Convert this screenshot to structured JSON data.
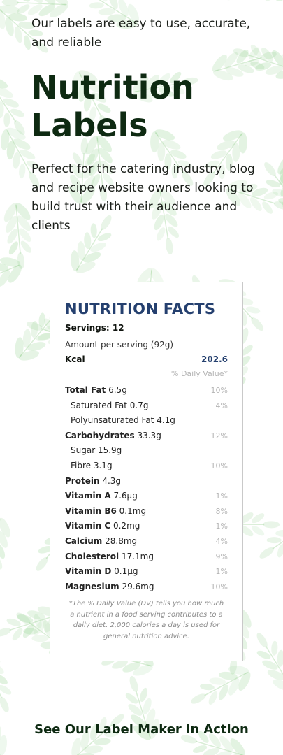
{
  "hero": {
    "tagline": "Our labels are easy to use, accurate, and reliable",
    "title": "Nutrition Labels",
    "intro": "Perfect for the catering industry, blog and recipe website owners looking to build trust with their audience and clients"
  },
  "label": {
    "title": "NUTRITION FACTS",
    "servings": "Servings: 12",
    "amount": "Amount per serving (92g)",
    "kcal_label": "Kcal",
    "kcal_value": "202.6",
    "dv_header": "% Daily Value*",
    "rows": [
      {
        "name": "Total Fat",
        "amount": " 6.5g",
        "pct": "10%",
        "bold": true,
        "sub": false
      },
      {
        "name": "Saturated Fat",
        "amount": " 0.7g",
        "pct": "4%",
        "bold": false,
        "sub": true
      },
      {
        "name": "Polyunsaturated Fat",
        "amount": " 4.1g",
        "pct": "",
        "bold": false,
        "sub": true
      },
      {
        "name": "Carbohydrates",
        "amount": " 33.3g",
        "pct": "12%",
        "bold": true,
        "sub": false
      },
      {
        "name": "Sugar",
        "amount": " 15.9g",
        "pct": "",
        "bold": false,
        "sub": true
      },
      {
        "name": "Fibre",
        "amount": " 3.1g",
        "pct": "10%",
        "bold": false,
        "sub": true
      },
      {
        "name": "Protein",
        "amount": " 4.3g",
        "pct": "",
        "bold": true,
        "sub": false
      },
      {
        "name": "Vitamin A",
        "amount": " 7.6µg",
        "pct": "1%",
        "bold": true,
        "sub": false
      },
      {
        "name": "Vitamin B6",
        "amount": " 0.1mg",
        "pct": "8%",
        "bold": true,
        "sub": false
      },
      {
        "name": "Vitamin C",
        "amount": " 0.2mg",
        "pct": "1%",
        "bold": true,
        "sub": false
      },
      {
        "name": "Calcium",
        "amount": " 28.8mg",
        "pct": "4%",
        "bold": true,
        "sub": false
      },
      {
        "name": "Cholesterol",
        "amount": " 17.1mg",
        "pct": "9%",
        "bold": true,
        "sub": false
      },
      {
        "name": "Vitamin D",
        "amount": " 0.1µg",
        "pct": "1%",
        "bold": true,
        "sub": false
      },
      {
        "name": "Magnesium",
        "amount": " 29.6mg",
        "pct": "10%",
        "bold": true,
        "sub": false
      }
    ],
    "footnote": "*The % Daily Value (DV) tells you how much a nutrient in a food serving contributes to a daily diet. 2,000 calories a day is used for general nutrition advice."
  },
  "cta": {
    "text": "See Our Label Maker in Action"
  },
  "colors": {
    "title_green": "#0e2a12",
    "label_blue": "#25406f",
    "leaf": "#8fcf8a"
  },
  "background": {
    "decoration": "watercolor-leaves"
  }
}
